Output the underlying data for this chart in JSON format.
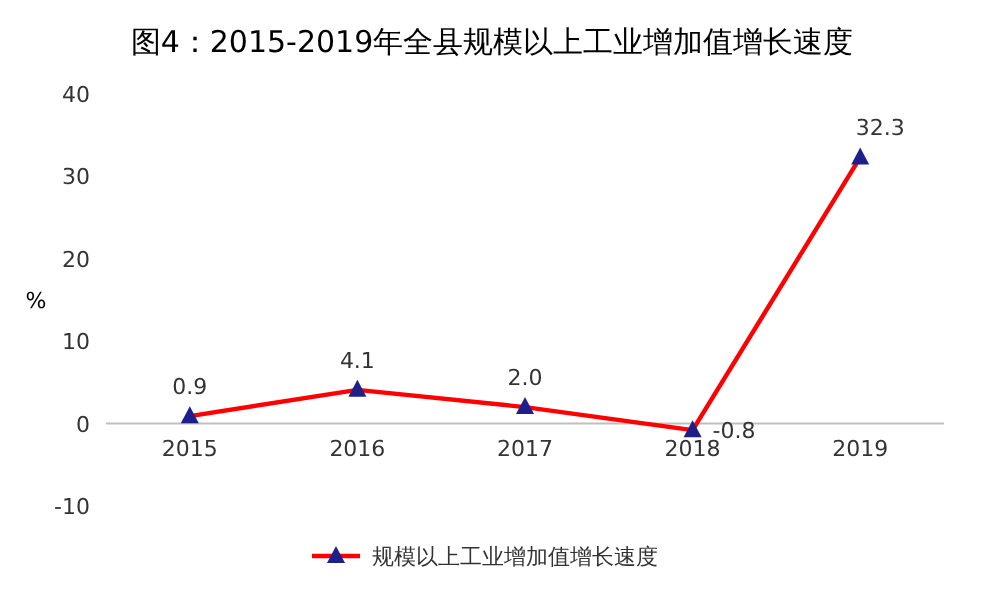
{
  "chart_data": {
    "type": "line",
    "title": "图4：2015-2019年全县规模以上工业增加值增长速度",
    "ylabel": "%",
    "categories": [
      "2015",
      "2016",
      "2017",
      "2018",
      "2019"
    ],
    "series": [
      {
        "name": "规模以上工业增加值增长速度",
        "color": "#ff0000",
        "values": [
          0.9,
          4.1,
          2.0,
          -0.8,
          32.3
        ],
        "value_labels": [
          "0.9",
          "4.1",
          "2.0",
          "-0.8",
          "32.3"
        ]
      }
    ],
    "ylim": [
      -10,
      40
    ],
    "yticks": [
      -10,
      0,
      10,
      20,
      30,
      40
    ],
    "marker": "triangle",
    "grid": false,
    "legend": "bottom"
  }
}
